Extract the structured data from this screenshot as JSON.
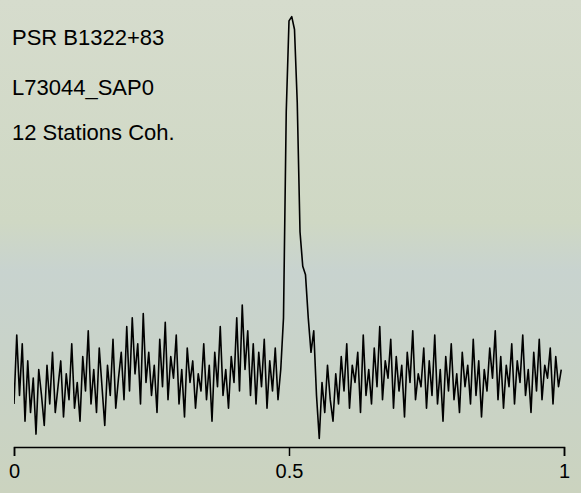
{
  "chart_data": {
    "type": "line",
    "annotations": [
      "PSR B1322+83",
      "L73044_SAP0",
      "12 Stations Coh."
    ],
    "color": "#000000",
    "tick_labels": "x",
    "xlim": [
      0,
      1
    ],
    "xticks": [
      0,
      0.5,
      1
    ],
    "ylim": [
      0,
      1.02
    ],
    "x": [
      0,
      0.005,
      0.01,
      0.015,
      0.02,
      0.025,
      0.03,
      0.035,
      0.04,
      0.045,
      0.05,
      0.055,
      0.06,
      0.065,
      0.07,
      0.075,
      0.08,
      0.085,
      0.09,
      0.095,
      0.1,
      0.105,
      0.11,
      0.115,
      0.12,
      0.125,
      0.13,
      0.135,
      0.14,
      0.145,
      0.15,
      0.155,
      0.16,
      0.165,
      0.17,
      0.175,
      0.18,
      0.185,
      0.19,
      0.195,
      0.2,
      0.205,
      0.21,
      0.215,
      0.22,
      0.225,
      0.23,
      0.235,
      0.24,
      0.245,
      0.25,
      0.255,
      0.26,
      0.265,
      0.27,
      0.275,
      0.28,
      0.285,
      0.29,
      0.295,
      0.3,
      0.305,
      0.31,
      0.315,
      0.32,
      0.325,
      0.33,
      0.335,
      0.34,
      0.345,
      0.35,
      0.355,
      0.36,
      0.365,
      0.37,
      0.375,
      0.38,
      0.385,
      0.39,
      0.395,
      0.4,
      0.405,
      0.41,
      0.415,
      0.42,
      0.425,
      0.43,
      0.435,
      0.44,
      0.445,
      0.45,
      0.455,
      0.46,
      0.465,
      0.47,
      0.475,
      0.48,
      0.485,
      0.49,
      0.495,
      0.5,
      0.505,
      0.51,
      0.515,
      0.52,
      0.525,
      0.53,
      0.535,
      0.54,
      0.545,
      0.55,
      0.555,
      0.56,
      0.565,
      0.57,
      0.575,
      0.58,
      0.585,
      0.59,
      0.595,
      0.6,
      0.605,
      0.61,
      0.615,
      0.62,
      0.625,
      0.63,
      0.635,
      0.64,
      0.645,
      0.65,
      0.655,
      0.66,
      0.665,
      0.67,
      0.675,
      0.68,
      0.685,
      0.69,
      0.695,
      0.7,
      0.705,
      0.71,
      0.715,
      0.72,
      0.725,
      0.73,
      0.735,
      0.74,
      0.745,
      0.75,
      0.755,
      0.76,
      0.765,
      0.77,
      0.775,
      0.78,
      0.785,
      0.79,
      0.795,
      0.8,
      0.805,
      0.81,
      0.815,
      0.82,
      0.825,
      0.83,
      0.835,
      0.84,
      0.845,
      0.85,
      0.855,
      0.86,
      0.865,
      0.87,
      0.875,
      0.88,
      0.885,
      0.89,
      0.895,
      0.9,
      0.905,
      0.91,
      0.915,
      0.92,
      0.925,
      0.93,
      0.935,
      0.94,
      0.945,
      0.95,
      0.955,
      0.96,
      0.965,
      0.97,
      0.975,
      0.98,
      0.985,
      0.99,
      0.995
    ],
    "values": [
      0.1,
      0.26,
      0.12,
      0.24,
      0.06,
      0.2,
      0.08,
      0.16,
      0.03,
      0.18,
      0.12,
      0.05,
      0.19,
      0.1,
      0.22,
      0.08,
      0.14,
      0.2,
      0.07,
      0.17,
      0.11,
      0.24,
      0.09,
      0.15,
      0.06,
      0.21,
      0.13,
      0.27,
      0.1,
      0.18,
      0.08,
      0.23,
      0.14,
      0.05,
      0.19,
      0.12,
      0.25,
      0.09,
      0.16,
      0.22,
      0.11,
      0.28,
      0.13,
      0.3,
      0.17,
      0.24,
      0.1,
      0.31,
      0.15,
      0.22,
      0.12,
      0.19,
      0.08,
      0.25,
      0.14,
      0.29,
      0.11,
      0.21,
      0.16,
      0.26,
      0.1,
      0.18,
      0.07,
      0.23,
      0.15,
      0.2,
      0.09,
      0.17,
      0.13,
      0.24,
      0.11,
      0.19,
      0.06,
      0.22,
      0.14,
      0.28,
      0.12,
      0.18,
      0.09,
      0.21,
      0.15,
      0.3,
      0.13,
      0.33,
      0.18,
      0.27,
      0.12,
      0.24,
      0.1,
      0.22,
      0.14,
      0.25,
      0.09,
      0.2,
      0.13,
      0.23,
      0.11,
      0.18,
      0.3,
      0.78,
      0.99,
      1.0,
      0.97,
      0.8,
      0.5,
      0.42,
      0.4,
      0.3,
      0.22,
      0.27,
      0.12,
      0.02,
      0.15,
      0.08,
      0.19,
      0.11,
      0.06,
      0.17,
      0.1,
      0.21,
      0.13,
      0.24,
      0.09,
      0.19,
      0.15,
      0.22,
      0.08,
      0.26,
      0.12,
      0.18,
      0.1,
      0.23,
      0.14,
      0.28,
      0.11,
      0.2,
      0.16,
      0.25,
      0.09,
      0.21,
      0.13,
      0.19,
      0.07,
      0.22,
      0.15,
      0.27,
      0.11,
      0.17,
      0.14,
      0.23,
      0.09,
      0.2,
      0.12,
      0.26,
      0.1,
      0.18,
      0.06,
      0.21,
      0.13,
      0.24,
      0.11,
      0.17,
      0.08,
      0.22,
      0.14,
      0.19,
      0.1,
      0.25,
      0.12,
      0.2,
      0.07,
      0.18,
      0.13,
      0.23,
      0.16,
      0.27,
      0.11,
      0.21,
      0.09,
      0.19,
      0.14,
      0.24,
      0.1,
      0.2,
      0.15,
      0.26,
      0.12,
      0.18,
      0.08,
      0.22,
      0.13,
      0.25,
      0.11,
      0.19,
      0.16,
      0.23,
      0.1,
      0.21,
      0.14,
      0.18
    ]
  }
}
